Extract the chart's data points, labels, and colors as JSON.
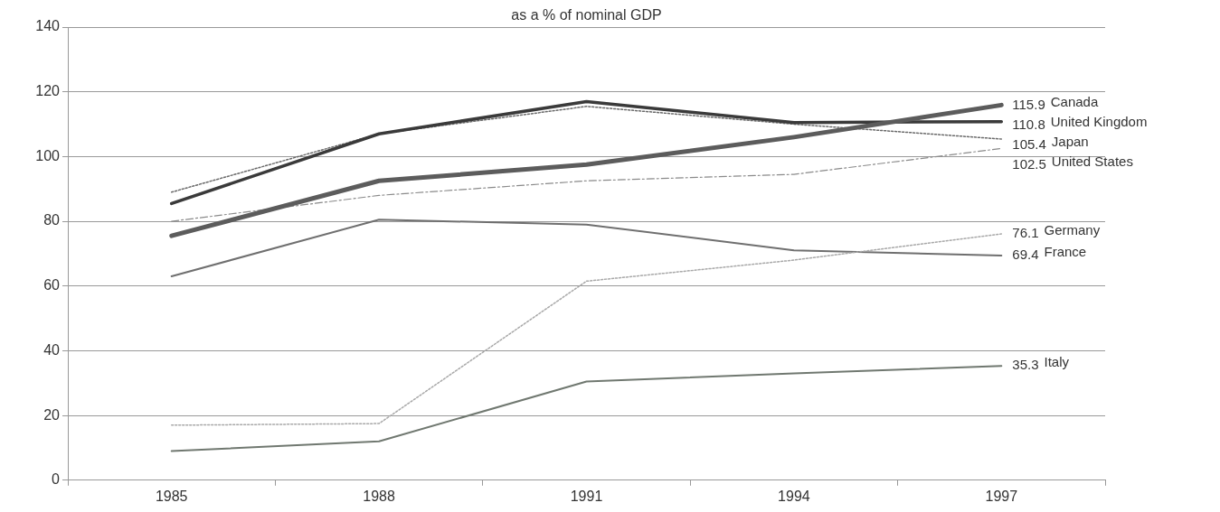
{
  "chart_data": {
    "type": "line",
    "title": "as a % of nominal GDP",
    "categories": [
      "1985",
      "1988",
      "1991",
      "1994",
      "1997"
    ],
    "series": [
      {
        "name": "Canada",
        "color": "#5c5c5c",
        "line_style": "solid",
        "values": [
          75.5,
          92.5,
          97.5,
          106,
          115.9
        ],
        "value_labels": [
          null,
          null,
          null,
          null,
          "115.9"
        ]
      },
      {
        "name": "United Kingdom",
        "color": "#3a3a3a",
        "line_style": "solid",
        "values": [
          85.5,
          107,
          117,
          110.5,
          110.8
        ],
        "value_labels": [
          null,
          null,
          null,
          null,
          "110.8"
        ]
      },
      {
        "name": "Japan",
        "color": "#6a6a6a",
        "line_style": "dotted",
        "values": [
          89,
          107,
          115.5,
          110,
          105.4
        ],
        "value_labels": [
          null,
          null,
          null,
          null,
          "105.4"
        ]
      },
      {
        "name": "United States",
        "color": "#8a8a8a",
        "line_style": "dashed",
        "values": [
          80,
          88,
          92.5,
          94.5,
          102.5
        ],
        "value_labels": [
          null,
          null,
          null,
          null,
          "102.5"
        ]
      },
      {
        "name": "Germany",
        "color": "#a8a8a8",
        "line_style": "dotted",
        "values": [
          17,
          17.5,
          61.5,
          68,
          76.1
        ],
        "value_labels": [
          null,
          null,
          null,
          null,
          "76.1"
        ]
      },
      {
        "name": "France",
        "color": "#6f6f6f",
        "line_style": "solid",
        "values": [
          63,
          80.5,
          79,
          71,
          69.4
        ],
        "value_labels": [
          null,
          null,
          null,
          null,
          "69.4"
        ]
      },
      {
        "name": "Italy",
        "color": "#707870",
        "line_style": "solid",
        "values": [
          9,
          12,
          30.5,
          33,
          35.3
        ],
        "value_labels": [
          null,
          null,
          null,
          null,
          "35.3"
        ]
      }
    ],
    "ylim": [
      0,
      140
    ],
    "yticks": [
      0,
      20,
      40,
      60,
      80,
      100,
      120,
      140
    ],
    "grid": "y",
    "legend": false,
    "marker": "none"
  }
}
